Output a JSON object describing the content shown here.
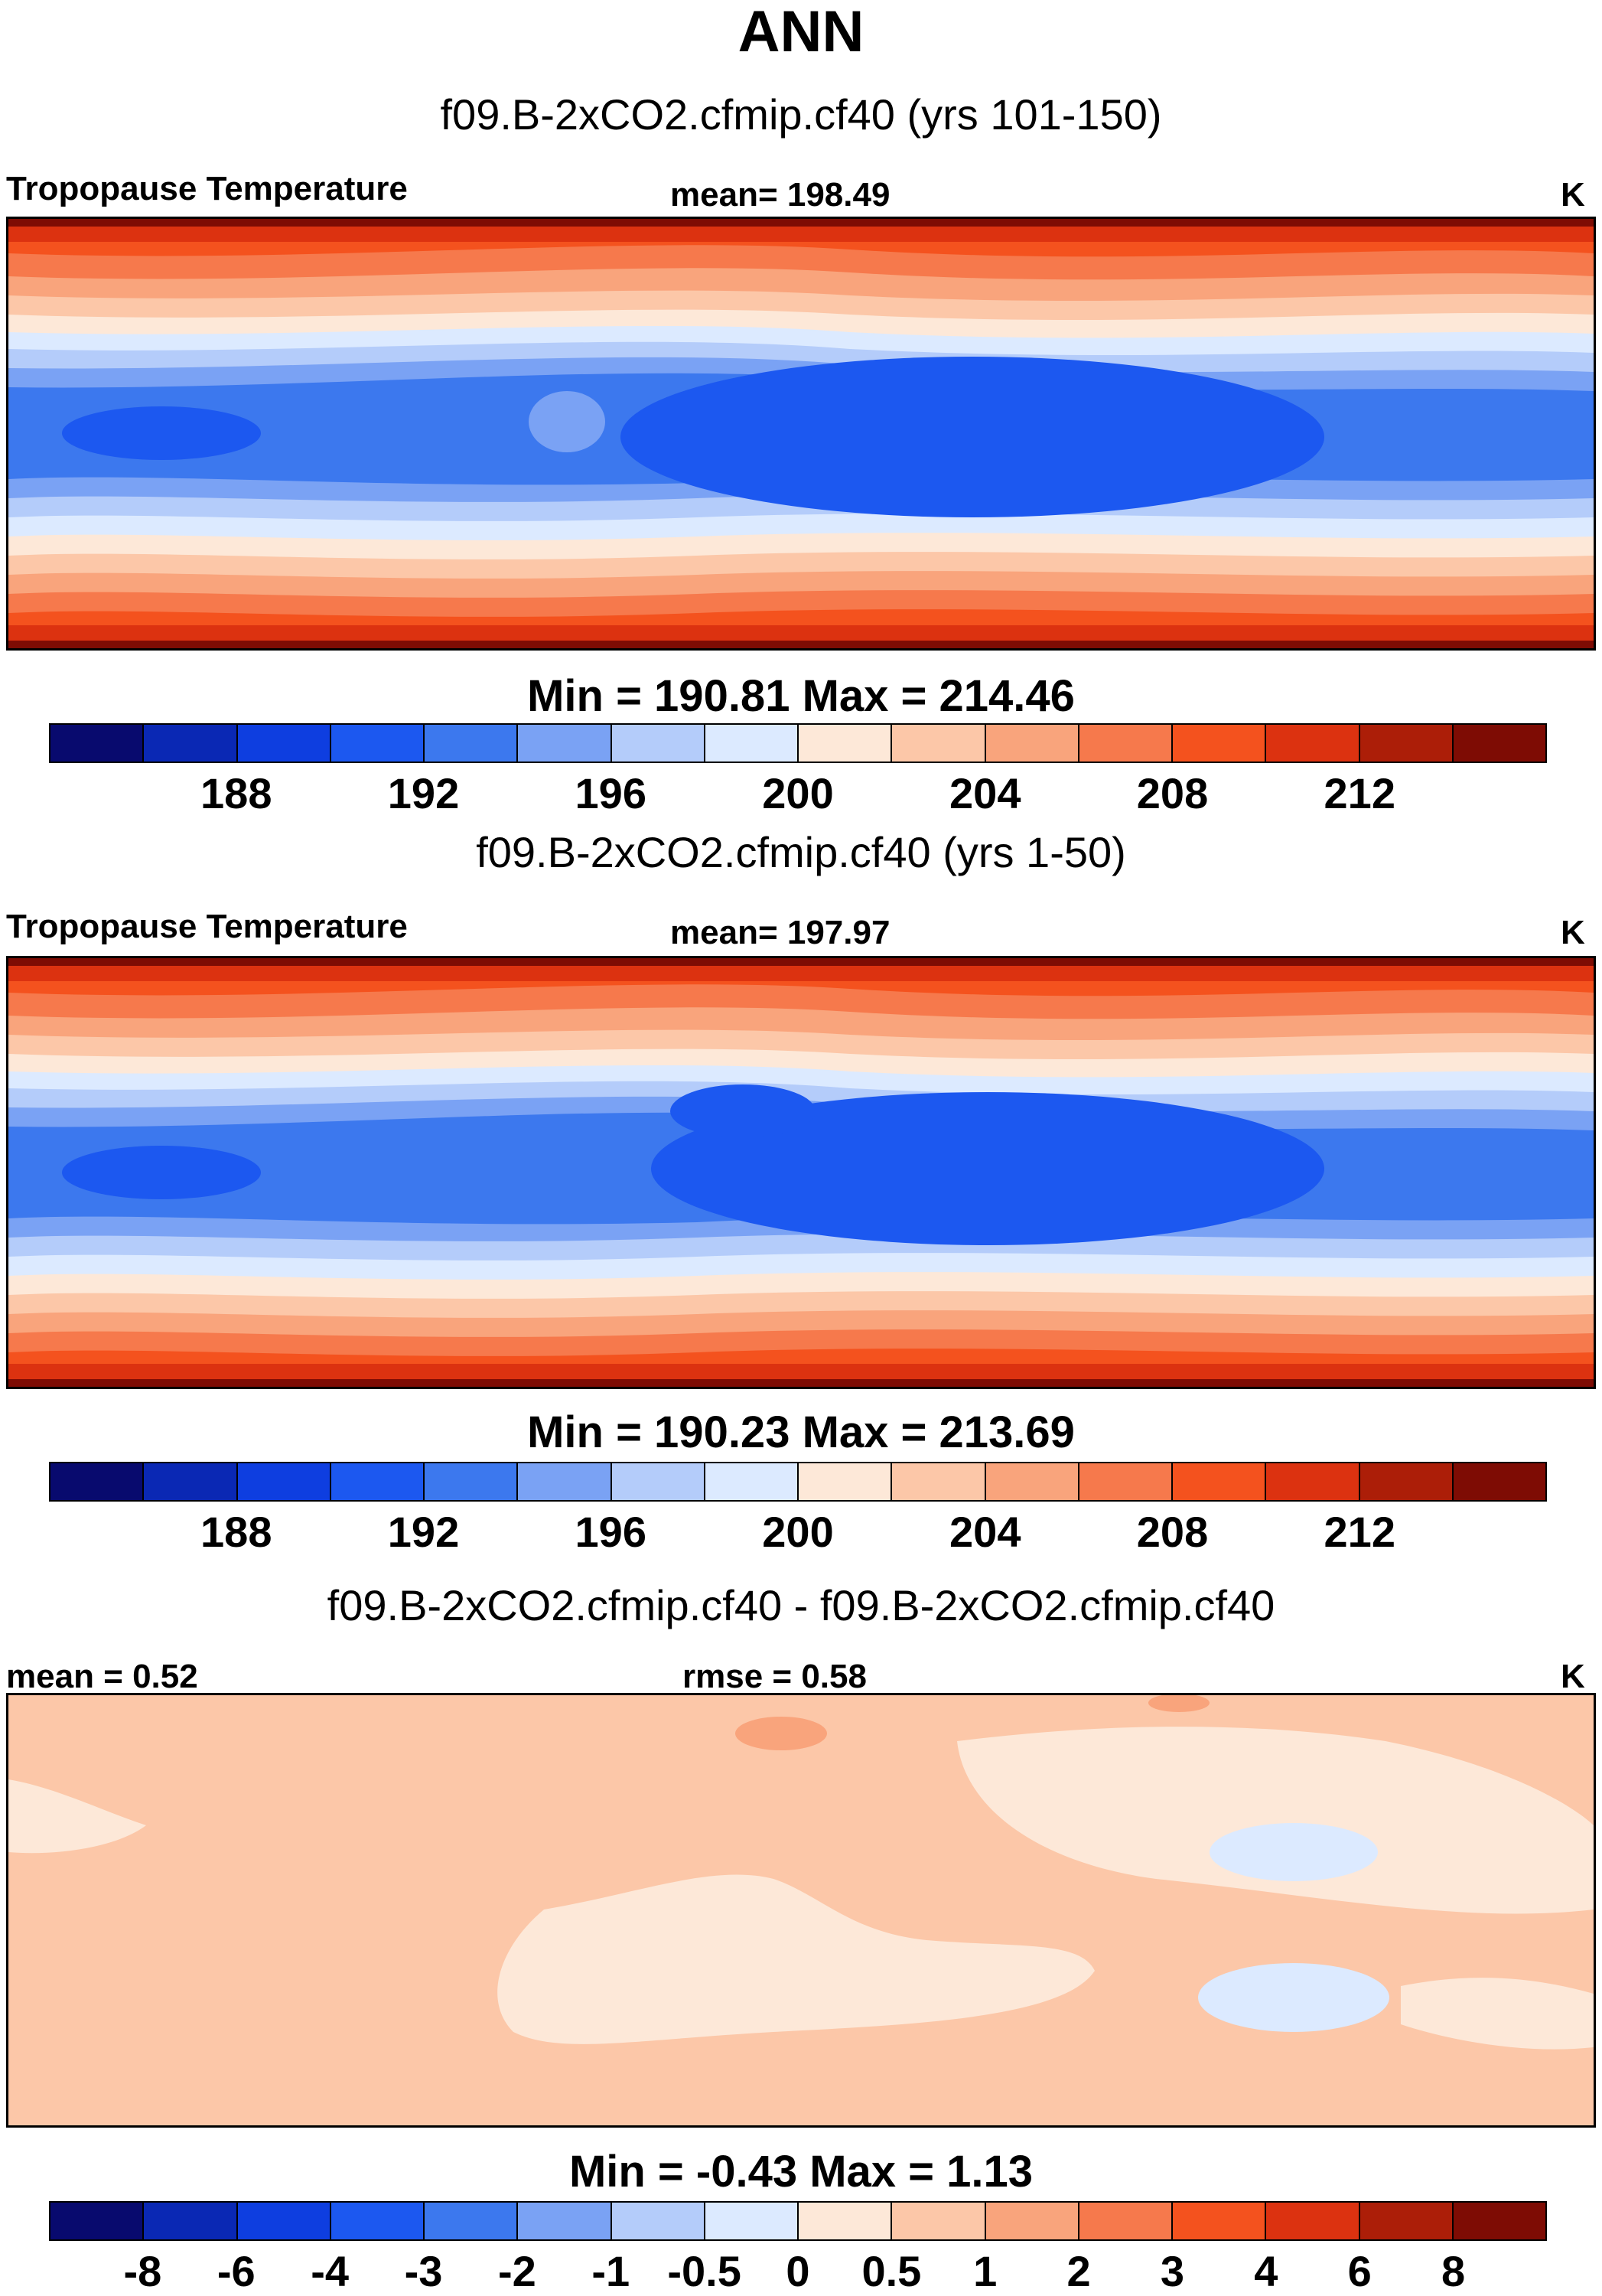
{
  "title": "ANN",
  "colors_abs": [
    "#080a6e",
    "#0a28b4",
    "#0e3ee0",
    "#1c58f0",
    "#3c78ee",
    "#7aa2f4",
    "#b4ccfa",
    "#dceaff",
    "#fde8d8",
    "#fcc7a8",
    "#f9a47c",
    "#f6794c",
    "#f4521e",
    "#dc3210",
    "#ac1e08",
    "#7e0c04"
  ],
  "colors_diff": [
    "#080a6e",
    "#0a28b4",
    "#0e3ee0",
    "#1c58f0",
    "#3c78ee",
    "#7aa2f4",
    "#b4ccfa",
    "#dceaff",
    "#fde8d8",
    "#fcc7a8",
    "#f9a47c",
    "#f6794c",
    "#f4521e",
    "#dc3210",
    "#ac1e08",
    "#7e0c04"
  ],
  "panels": [
    {
      "case": "f09.B-2xCO2.cfmip.cf40 (yrs 101-150)",
      "left": "Tropopause Temperature",
      "center": "mean= 198.49",
      "unit": "K",
      "minmax": "Min = 190.81 Max = 214.46",
      "ticks": [
        "188",
        "192",
        "196",
        "200",
        "204",
        "208",
        "212"
      ]
    },
    {
      "case": "f09.B-2xCO2.cfmip.cf40 (yrs 1-50)",
      "left": "Tropopause Temperature",
      "center": "mean= 197.97",
      "unit": "K",
      "minmax": "Min = 190.23 Max = 213.69",
      "ticks": [
        "188",
        "192",
        "196",
        "200",
        "204",
        "208",
        "212"
      ]
    },
    {
      "case": "f09.B-2xCO2.cfmip.cf40 - f09.B-2xCO2.cfmip.cf40",
      "left": "mean =   0.52",
      "center": "rmse =   0.58",
      "unit": "K",
      "minmax": "Min =  -0.43 Max =    1.13",
      "ticks": [
        "-8",
        "-6",
        "-4",
        "-3",
        "-2",
        "-1",
        "-0.5",
        "0",
        "0.5",
        "1",
        "2",
        "3",
        "4",
        "6",
        "8"
      ]
    }
  ]
}
